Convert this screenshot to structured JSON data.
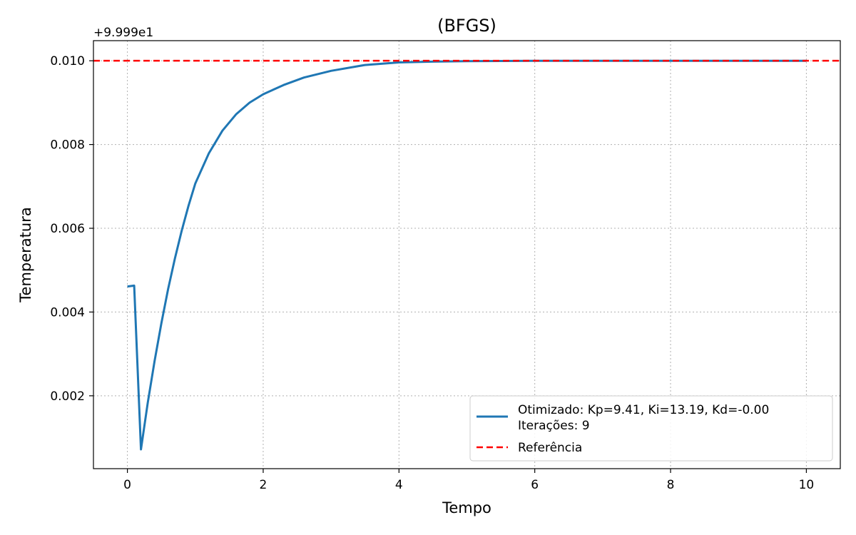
{
  "chart_data": {
    "type": "line",
    "title": "(BFGS)",
    "xlabel": "Tempo",
    "ylabel": "Temperatura",
    "y_offset_label": "+9.999e1",
    "xlim": [
      -0.5,
      10.5
    ],
    "ylim": [
      0.00026,
      0.01048
    ],
    "x_ticks": [
      0,
      2,
      4,
      6,
      8,
      10
    ],
    "x_tick_labels": [
      "0",
      "2",
      "4",
      "6",
      "8",
      "10"
    ],
    "y_ticks": [
      0.002,
      0.004,
      0.006,
      0.008,
      0.01
    ],
    "y_tick_labels": [
      "0.002",
      "0.004",
      "0.006",
      "0.008",
      "0.010"
    ],
    "grid": true,
    "legend_position": "lower-right",
    "series": [
      {
        "name": "Otimizado: Kp=9.41, Ki=13.19, Kd=-0.00",
        "name_line2": "Iterações: 9",
        "color": "#1f77b4",
        "style": "solid",
        "x": [
          0,
          0.1,
          0.2,
          0.3,
          0.4,
          0.5,
          0.6,
          0.7,
          0.8,
          0.9,
          1.0,
          1.2,
          1.4,
          1.6,
          1.8,
          2.0,
          2.3,
          2.6,
          3.0,
          3.5,
          4.0,
          4.5,
          5.0,
          6.0,
          7.0,
          8.0,
          9.0,
          10.0
        ],
        "y": [
          0.00461,
          0.00463,
          0.00072,
          0.00183,
          0.00283,
          0.00373,
          0.00455,
          0.00528,
          0.00594,
          0.00654,
          0.00707,
          0.00779,
          0.00833,
          0.00872,
          0.009,
          0.0092,
          0.00942,
          0.0096,
          0.00976,
          0.0099,
          0.00996,
          0.00998,
          0.00999,
          0.01,
          0.01,
          0.01,
          0.01,
          0.01
        ]
      },
      {
        "name": "Referência",
        "color": "#ff0000",
        "style": "dashed",
        "y_constant": 0.01
      }
    ]
  }
}
